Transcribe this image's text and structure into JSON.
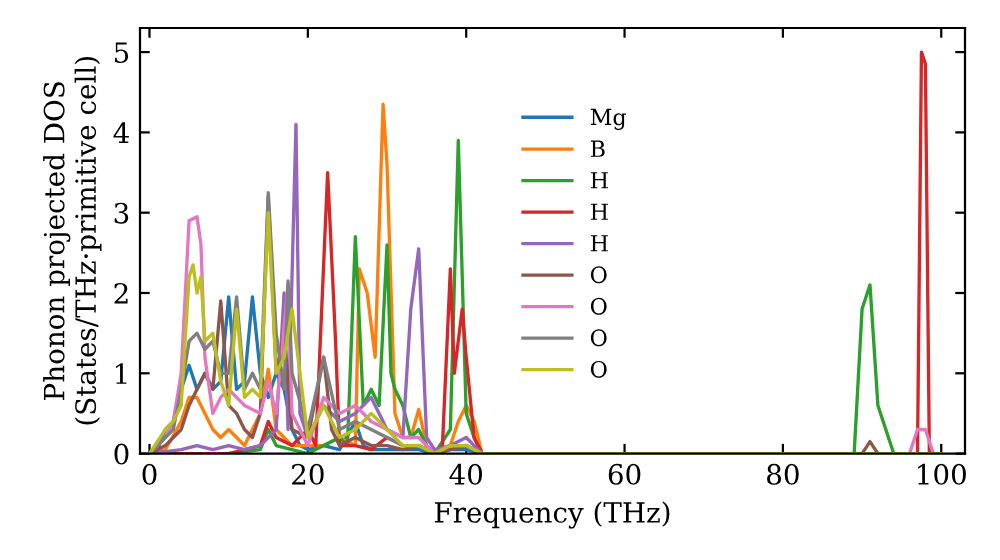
{
  "chart_data": {
    "type": "line",
    "xlabel": "Frequency (THz)",
    "ylabel": "Phonon projected DOS\n(States/THz·primitive cell)",
    "xlim": [
      -1.2,
      103
    ],
    "ylim": [
      0,
      5.3
    ],
    "xticks": [
      0,
      20,
      40,
      60,
      80,
      100
    ],
    "yticks": [
      0,
      1,
      2,
      3,
      4,
      5
    ],
    "grid": false,
    "legend": "right",
    "marker": "none",
    "line_style": "solid",
    "series": [
      {
        "name": "Mg",
        "color": "#1f77b4",
        "x": [
          0,
          1,
          2,
          3,
          4,
          5,
          6,
          7,
          8,
          9,
          10,
          11,
          12,
          13,
          14,
          15,
          16,
          17,
          18,
          19,
          20,
          22,
          24,
          26,
          27,
          28,
          30,
          32,
          34,
          36,
          38,
          40,
          42,
          60
        ],
        "values": [
          0,
          0.05,
          0.3,
          0.4,
          0.8,
          1.1,
          0.8,
          1.0,
          0.8,
          0.9,
          1.95,
          0.8,
          0.9,
          1.95,
          1.0,
          0.7,
          1.0,
          0.8,
          0.3,
          0.1,
          0.05,
          0.1,
          0.05,
          0.4,
          0.1,
          0.05,
          0.05,
          0.05,
          0.05,
          0,
          0.05,
          0.05,
          0,
          0
        ]
      },
      {
        "name": "B",
        "color": "#ff7f0e",
        "x": [
          0,
          2,
          4,
          5,
          6,
          7,
          8,
          9,
          10,
          11,
          12,
          13,
          14,
          15,
          16,
          17,
          18,
          20,
          22,
          24,
          26,
          26.5,
          27.5,
          28.5,
          29.5,
          30,
          31,
          32,
          33,
          34,
          35,
          36,
          38,
          39,
          40,
          41,
          42,
          60
        ],
        "values": [
          0,
          0.05,
          0.4,
          0.7,
          0.7,
          0.5,
          0.3,
          0.2,
          0.3,
          0.2,
          0.1,
          0.3,
          0.5,
          1.05,
          0.3,
          0.2,
          0.1,
          0.1,
          0.1,
          0.2,
          0.1,
          2.3,
          2.0,
          1.2,
          4.35,
          3.6,
          0.5,
          0.2,
          0.2,
          0.55,
          0.1,
          0,
          0.1,
          0.4,
          0.6,
          0.4,
          0,
          0
        ]
      },
      {
        "name": "H",
        "color": "#2ca02c",
        "x": [
          0,
          10,
          14,
          15,
          16,
          18,
          20,
          22,
          24,
          25,
          26,
          27,
          28,
          29,
          30,
          30.5,
          31,
          32,
          33,
          34,
          35,
          36,
          38,
          39,
          40,
          41,
          42,
          60,
          89,
          90,
          90.5,
          91,
          92,
          94,
          100
        ],
        "values": [
          0,
          0,
          0.05,
          0.3,
          0.1,
          0.05,
          0,
          0.1,
          0.2,
          0.1,
          2.7,
          0.6,
          0.8,
          0.6,
          2.6,
          1.0,
          0.8,
          0.6,
          0.2,
          0.3,
          0.1,
          0,
          0.3,
          3.9,
          0.5,
          0.2,
          0,
          0,
          0,
          1.8,
          1.95,
          2.1,
          0.6,
          0,
          0
        ]
      },
      {
        "name": "H",
        "color": "#d62728",
        "x": [
          0,
          10,
          14,
          15,
          16,
          18,
          20,
          21,
          22.5,
          23.5,
          24,
          26,
          28,
          30,
          32,
          34,
          35,
          36,
          37,
          38,
          38.5,
          39.5,
          40,
          41,
          42,
          60,
          96,
          97,
          97.5,
          98,
          98.5,
          100
        ],
        "values": [
          0,
          0,
          0.1,
          0.4,
          0.2,
          0.1,
          0.3,
          0.1,
          3.5,
          1.4,
          0.1,
          0.1,
          0.05,
          0.2,
          0.1,
          0.1,
          0.05,
          0,
          0.1,
          2.3,
          1.0,
          1.8,
          1.2,
          0.2,
          0,
          0,
          0,
          0,
          5.0,
          4.85,
          0,
          0
        ]
      },
      {
        "name": "H",
        "color": "#9467bd",
        "x": [
          0,
          4,
          6,
          8,
          10,
          12,
          14,
          16,
          17,
          17.5,
          18.5,
          19,
          20,
          22,
          24,
          26,
          28,
          30,
          32,
          33,
          34,
          35,
          36,
          38,
          40,
          42,
          60,
          100
        ],
        "values": [
          0,
          0.05,
          0.1,
          0.05,
          0.1,
          0.05,
          0.1,
          0.3,
          2.0,
          0.3,
          4.1,
          0.5,
          0.2,
          0.6,
          0.4,
          0.5,
          0.7,
          0.3,
          0.2,
          1.8,
          2.55,
          0.2,
          0.05,
          0.1,
          0.2,
          0,
          0,
          0
        ]
      },
      {
        "name": "O",
        "color": "#8c564b",
        "x": [
          0,
          2,
          4,
          5,
          6,
          7,
          8,
          9,
          10,
          11,
          12,
          13,
          14,
          15,
          16,
          17,
          18,
          20,
          22,
          23,
          24,
          26,
          28,
          30,
          32,
          34,
          36,
          38,
          40,
          42,
          60,
          90,
          91,
          92,
          100
        ],
        "values": [
          0,
          0.1,
          0.3,
          0.6,
          0.8,
          1.0,
          0.8,
          1.9,
          0.6,
          0.5,
          0.3,
          0.2,
          0.5,
          3.2,
          1.0,
          1.5,
          0.3,
          0.2,
          1.2,
          0.3,
          0.1,
          0.2,
          0.1,
          0.1,
          0.05,
          0.1,
          0,
          0.05,
          0.1,
          0,
          0,
          0,
          0.15,
          0,
          0
        ]
      },
      {
        "name": "O",
        "color": "#e377c2",
        "x": [
          0,
          2,
          3,
          4,
          5,
          6,
          6.5,
          7,
          8,
          9,
          10,
          12,
          14,
          15,
          16,
          17.5,
          18,
          20,
          22,
          24,
          26,
          28,
          30,
          32,
          34,
          36,
          38,
          40,
          42,
          60,
          96,
          97,
          98,
          99,
          100
        ],
        "values": [
          0,
          0.2,
          0.4,
          1.0,
          2.9,
          2.95,
          2.6,
          1.2,
          0.5,
          0.7,
          0.8,
          0.6,
          0.5,
          0.9,
          0.5,
          2.1,
          0.5,
          0.1,
          0.7,
          0.5,
          0.6,
          0.4,
          0.3,
          0.2,
          0.2,
          0,
          0.1,
          0.1,
          0,
          0,
          0,
          0.3,
          0.3,
          0,
          0
        ]
      },
      {
        "name": "O",
        "color": "#7f7f7f",
        "x": [
          0,
          2,
          3,
          4,
          5,
          6,
          7,
          8,
          9,
          10,
          11,
          12,
          13,
          14,
          15,
          16,
          17,
          17.5,
          18,
          20,
          22,
          24,
          26,
          28,
          30,
          32,
          34,
          36,
          38,
          40,
          42,
          60,
          100
        ],
        "values": [
          0,
          0.2,
          0.3,
          0.8,
          1.4,
          1.5,
          1.3,
          1.4,
          1.0,
          1.0,
          1.95,
          0.8,
          1.0,
          0.8,
          3.25,
          1.5,
          0.8,
          2.15,
          1.0,
          0.3,
          1.2,
          0.3,
          0.4,
          0.3,
          0.2,
          0.1,
          0.1,
          0,
          0.1,
          0.1,
          0,
          0,
          0
        ]
      },
      {
        "name": "O",
        "color": "#bcbd22",
        "x": [
          0,
          2,
          3,
          4,
          5,
          5.5,
          6,
          6.5,
          7,
          8,
          9,
          10,
          11,
          12,
          13,
          14,
          15,
          16,
          17,
          18,
          20,
          22,
          24,
          26,
          28,
          30,
          32,
          34,
          36,
          38,
          40,
          42,
          60,
          100
        ],
        "values": [
          0,
          0.3,
          0.4,
          0.6,
          2.2,
          2.35,
          2.0,
          2.2,
          1.4,
          1.5,
          0.9,
          0.6,
          1.8,
          0.7,
          0.8,
          0.7,
          3.0,
          1.0,
          1.2,
          1.8,
          0.2,
          0.6,
          0.2,
          0.3,
          0.5,
          0.3,
          0.1,
          0.1,
          0,
          0.1,
          0.1,
          0,
          0,
          0
        ]
      }
    ]
  }
}
